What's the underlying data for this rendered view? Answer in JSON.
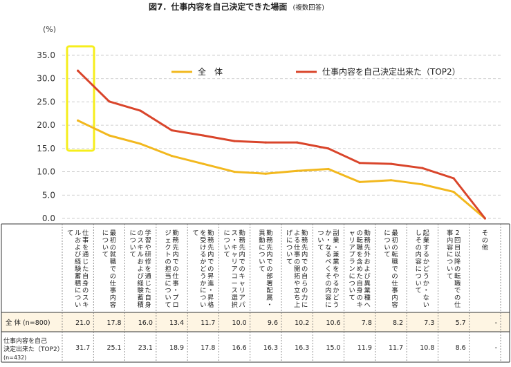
{
  "colors": {
    "all": "#F2B81E",
    "top2": "#D9452B",
    "highlight": "#F6EE1C",
    "row_bg": "#FEF5E3",
    "grid": "#BFBFBF",
    "axis_text": "#333333"
  },
  "chart_data": {
    "type": "line",
    "title": "図7．仕事内容を自己決定できた場面",
    "subtitle": "(複数回答)",
    "ylabel": "(%)",
    "ylim": [
      0,
      35
    ],
    "yticks": [
      "35.0",
      "30.0",
      "25.0",
      "20.0",
      "15.0",
      "10.0",
      "5.0",
      "0.0"
    ],
    "grid": true,
    "legend_position": "top",
    "categories": [
      "仕事を通じた自身のスキルおよび経験蓄積について",
      "最初の就職での仕事内容について",
      "学習や研修を通じた自身のスキルおよび経験蓄積について",
      "勤務先内での仕事・プロジェクトの担当について",
      "勤務先内での昇進・昇格を受けるかどうかについて",
      "勤務先内でのキャリアパス・キャリアコース選択について",
      "勤務先内での部署配属・異動について",
      "勤務先内での自らの力による仕事の開拓や立ち上げについて",
      "副業・兼業をやるかどうか・なるべくその内容について",
      "勤務先外および異業種への転職を含めた自身のキャリアプランについて",
      "最初の転職での仕事内容について",
      "起業するかどうか・ないしその内容について",
      "2回目以降の転職での仕事内容について",
      "その他"
    ],
    "series": [
      {
        "name": "全　体",
        "table_label": "全 体 (n=800)",
        "values": [
          21.0,
          17.8,
          16.0,
          13.4,
          11.7,
          10.0,
          9.6,
          10.2,
          10.6,
          7.8,
          8.2,
          7.3,
          5.7,
          0
        ],
        "labels": [
          "21.0",
          "17.8",
          "16.0",
          "13.4",
          "11.7",
          "10.0",
          "9.6",
          "10.2",
          "10.6",
          "7.8",
          "8.2",
          "7.3",
          "5.7",
          "-"
        ]
      },
      {
        "name": "仕事内容を自己決定出来た（TOP2）",
        "table_label": "仕事内容を自己決定出来た（TOP2）",
        "table_n": "(n=432)",
        "values": [
          31.7,
          25.1,
          23.1,
          18.9,
          17.8,
          16.6,
          16.3,
          16.3,
          15.0,
          11.9,
          11.7,
          10.8,
          8.6,
          0
        ],
        "labels": [
          "31.7",
          "25.1",
          "23.1",
          "18.9",
          "17.8",
          "16.6",
          "16.3",
          "16.3",
          "15.0",
          "11.9",
          "11.7",
          "10.8",
          "8.6",
          "-"
        ]
      }
    ]
  }
}
